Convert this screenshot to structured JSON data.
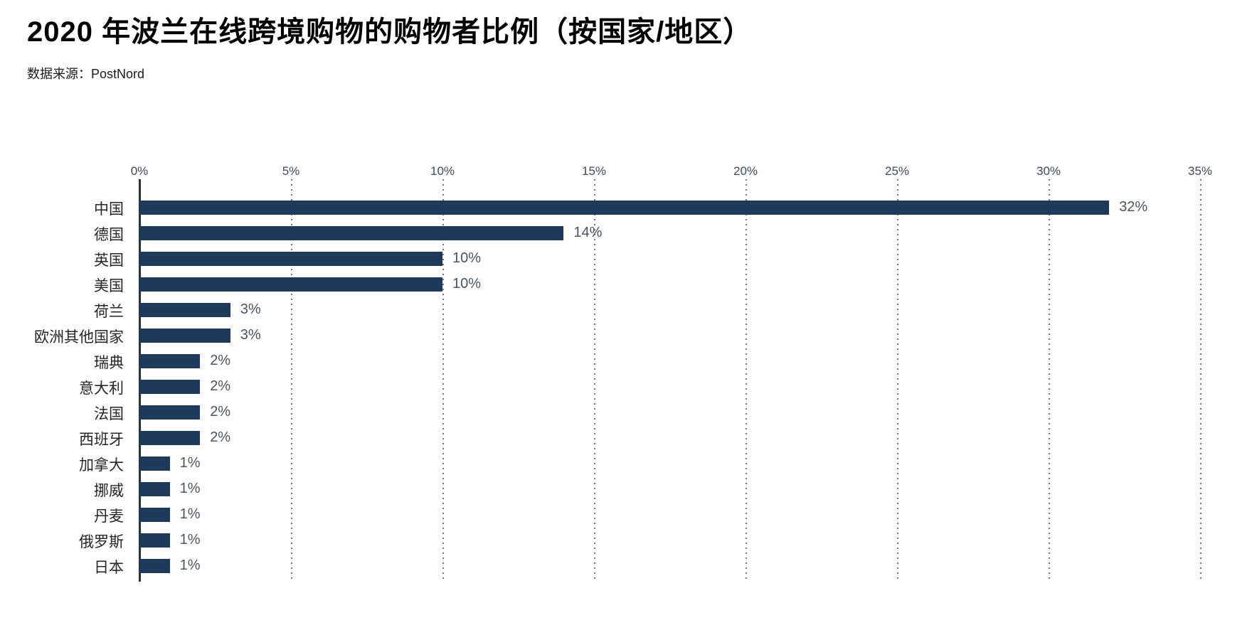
{
  "header": {
    "title": "2020 年波兰在线跨境购物的购物者比例（按国家/地区）",
    "source_label": "数据来源：PostNord"
  },
  "chart_data": {
    "type": "bar",
    "orientation": "horizontal",
    "title": "2020 年波兰在线跨境购物的购物者比例（按国家/地区）",
    "source": "数据来源：PostNord",
    "categories": [
      "中国",
      "德国",
      "英国",
      "美国",
      "荷兰",
      "欧洲其他国家",
      "瑞典",
      "意大利",
      "法国",
      "西班牙",
      "加拿大",
      "挪威",
      "丹麦",
      "俄罗斯",
      "日本"
    ],
    "values": [
      32,
      14,
      10,
      10,
      3,
      3,
      2,
      2,
      2,
      2,
      1,
      1,
      1,
      1,
      1
    ],
    "value_labels": [
      "32%",
      "14%",
      "10%",
      "10%",
      "3%",
      "3%",
      "2%",
      "2%",
      "2%",
      "2%",
      "1%",
      "1%",
      "1%",
      "1%",
      "1%"
    ],
    "x_ticks": [
      "0%",
      "5%",
      "10%",
      "15%",
      "20%",
      "25%",
      "30%",
      "35%"
    ],
    "xlim": [
      0,
      35
    ],
    "grid": "dotted-vertical-every-5pct",
    "legend": "none",
    "colors": {
      "bar": "#1d395c",
      "axis_line": "#25313d",
      "grid": "#6e7780",
      "tick_label": "#3e4a56",
      "value_label": "#4a545f",
      "category_label": "#262626"
    }
  }
}
